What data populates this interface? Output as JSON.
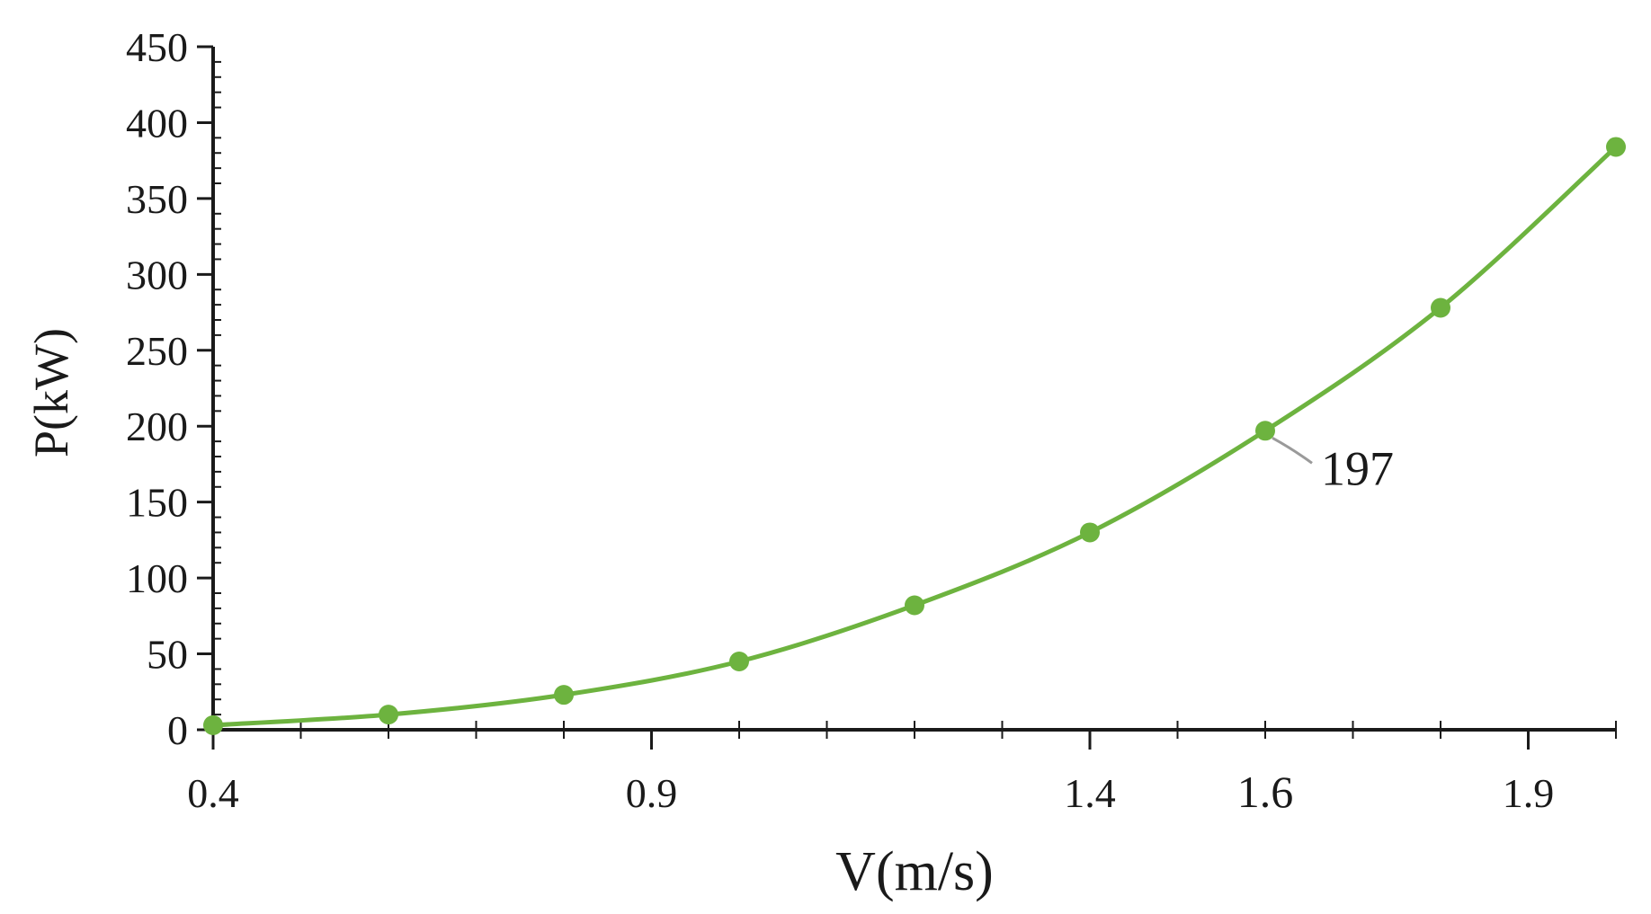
{
  "chart_data": {
    "type": "line",
    "xlabel": "V(m/s)",
    "ylabel": "P(kW)",
    "xlim": [
      0.4,
      2.0
    ],
    "ylim": [
      0,
      450
    ],
    "x_ticks": [
      "0.4",
      "0.9",
      "1.4",
      "1.6",
      "1.9"
    ],
    "y_ticks": [
      "0",
      "50",
      "100",
      "150",
      "200",
      "250",
      "300",
      "350",
      "400",
      "450"
    ],
    "grid": false,
    "legend": "none",
    "line_color": "#6db33f",
    "series": [
      {
        "x": [
          0.4,
          0.6,
          0.8,
          1.0,
          1.2,
          1.4,
          1.6,
          1.8,
          2.0
        ],
        "y": [
          3,
          10,
          23,
          45,
          82,
          130,
          197,
          278,
          384
        ]
      }
    ],
    "annotations": [
      {
        "text": "197",
        "x": 1.6,
        "y": 197
      }
    ]
  }
}
